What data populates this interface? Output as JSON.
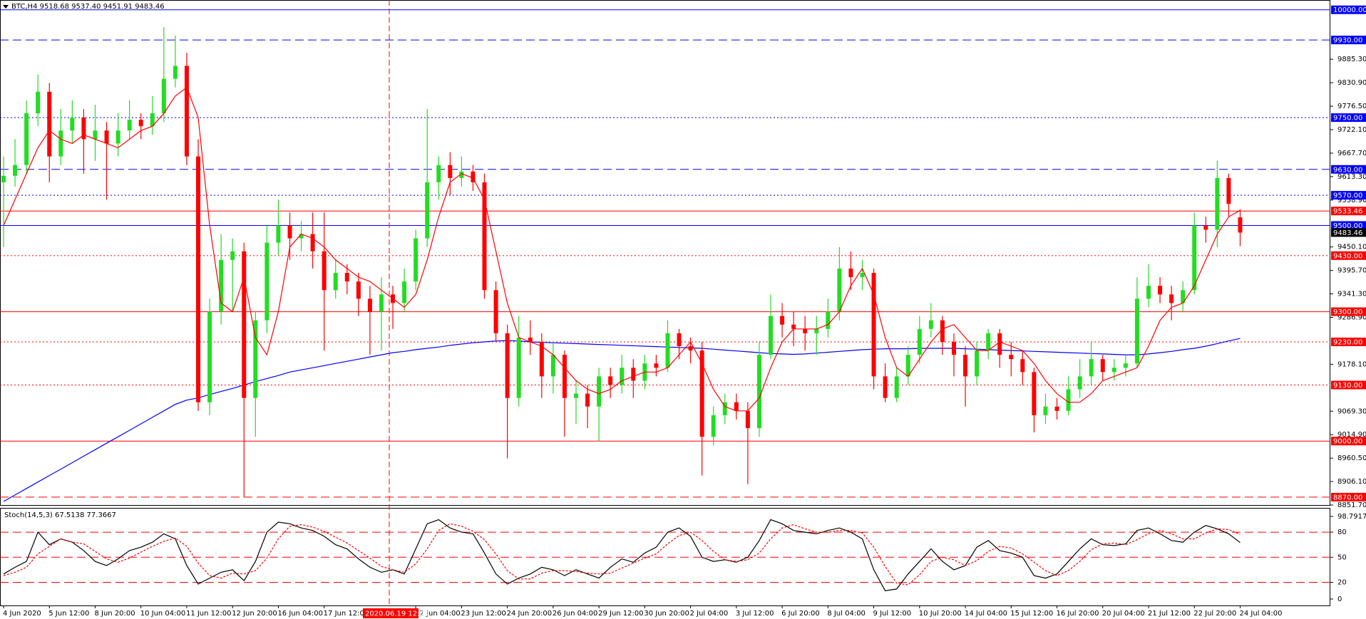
{
  "chart_data": {
    "type": "candlestick",
    "header": "BTC,H4  9518.68 9537.40 9451.91 9483.46",
    "bull_color": "#22dd22",
    "bear_color": "#ff0000",
    "ylim": [
      8851.7,
      10022.7
    ],
    "yticks": [
      {
        "value": 9885.3,
        "label": "9885.30"
      },
      {
        "value": 9830.9,
        "label": "9830.90"
      },
      {
        "value": 9776.5,
        "label": "9776.50"
      },
      {
        "value": 9722.1,
        "label": "9722.10"
      },
      {
        "value": 9667.7,
        "label": "9667.70"
      },
      {
        "value": 9613.3,
        "label": "9613.30"
      },
      {
        "value": 9558.9,
        "label": "9558.90"
      },
      {
        "value": 9450.1,
        "label": "9450.10"
      },
      {
        "value": 9395.7,
        "label": "9395.70"
      },
      {
        "value": 9341.3,
        "label": "9341.30"
      },
      {
        "value": 9286.9,
        "label": "9286.90"
      },
      {
        "value": 9178.1,
        "label": "9178.10"
      },
      {
        "value": 9069.3,
        "label": "9069.30"
      },
      {
        "value": 9014.9,
        "label": "9014.90"
      },
      {
        "value": 8960.5,
        "label": "8960.50"
      },
      {
        "value": 8906.1,
        "label": "8906.10"
      },
      {
        "value": 8851.7,
        "label": "8851.70"
      }
    ],
    "levels": [
      {
        "value": 10000,
        "label": "10000.00",
        "color": "#0000ff",
        "style": "solid"
      },
      {
        "value": 9930,
        "label": "9930.00",
        "color": "#0000ff",
        "style": "dashed"
      },
      {
        "value": 9750,
        "label": "9750.00",
        "color": "#0000ff",
        "style": "dotted"
      },
      {
        "value": 9630,
        "label": "9630.00",
        "color": "#0000ff",
        "style": "dashed"
      },
      {
        "value": 9570,
        "label": "9570.00",
        "color": "#0000ff",
        "style": "dotted"
      },
      {
        "value": 9533.46,
        "color": "#ff0000",
        "style": "solid"
      },
      {
        "value": 9500,
        "label": "9500.00",
        "color": "#0000ff",
        "style": "solid"
      },
      {
        "value": 9430,
        "label": "9430.00",
        "color": "#ff0000",
        "style": "dotted"
      },
      {
        "value": 9300,
        "label": "9300.00",
        "color": "#ff0000",
        "style": "solid"
      },
      {
        "value": 9230,
        "label": "9230.00",
        "color": "#ff0000",
        "style": "dotted"
      },
      {
        "value": 9130,
        "label": "9130.00",
        "color": "#ff0000",
        "style": "dotted"
      },
      {
        "value": 9000,
        "label": "9000.00",
        "color": "#ff0000",
        "style": "solid"
      },
      {
        "value": 8870,
        "label": "8870.00",
        "color": "#ff0000",
        "style": "dashed"
      }
    ],
    "bid": {
      "value": 9483.46,
      "color": "#000000"
    },
    "crosshair": {
      "label": "2020.06.19 12:00",
      "color": "#ff0000"
    },
    "categories": [
      "4 Jun 2020",
      null,
      null,
      null,
      "5 Jun 12:00",
      null,
      null,
      null,
      "8 Jun 20:00",
      null,
      null,
      null,
      "10 Jun 04:00",
      null,
      null,
      null,
      "11 Jun 12:00",
      null,
      null,
      null,
      "12 Jun 20:00",
      null,
      null,
      null,
      "16 Jun 04:00",
      null,
      null,
      null,
      "17 Jun 12:00",
      null,
      null,
      null,
      null,
      null,
      null,
      null,
      "22 Jun 04:00",
      null,
      null,
      null,
      "23 Jun 12:00",
      null,
      null,
      null,
      "24 Jun 20:00",
      null,
      null,
      null,
      "26 Jun 04:00",
      null,
      null,
      null,
      "29 Jun 12:00",
      null,
      null,
      null,
      "30 Jun 20:00",
      null,
      null,
      null,
      "2 Jul 04:00",
      null,
      null,
      null,
      "3 Jul 12:00",
      null,
      null,
      null,
      "6 Jul 20:00",
      null,
      null,
      null,
      "8 Jul 04:00",
      null,
      null,
      null,
      "9 Jul 12:00",
      null,
      null,
      null,
      "10 Jul 20:00",
      null,
      null,
      null,
      "14 Jul 04:00",
      null,
      null,
      null,
      "15 Jul 12:00",
      null,
      null,
      null,
      "16 Jul 20:00",
      null,
      null,
      null,
      "20 Jul 04:00",
      null,
      null,
      null,
      "21 Jul 12:00",
      null,
      null,
      null,
      "22 Jul 20:00",
      null,
      null,
      null,
      "24 Jul 04:00"
    ],
    "ohlc": [
      [
        9600,
        9660,
        9450,
        9615
      ],
      [
        9615,
        9700,
        9590,
        9640
      ],
      [
        9640,
        9790,
        9620,
        9760
      ],
      [
        9760,
        9850,
        9730,
        9810
      ],
      [
        9810,
        9830,
        9600,
        9660
      ],
      [
        9660,
        9770,
        9640,
        9720
      ],
      [
        9720,
        9790,
        9690,
        9750
      ],
      [
        9750,
        9770,
        9620,
        9700
      ],
      [
        9700,
        9780,
        9650,
        9720
      ],
      [
        9720,
        9740,
        9560,
        9690
      ],
      [
        9690,
        9760,
        9660,
        9720
      ],
      [
        9720,
        9790,
        9700,
        9745
      ],
      [
        9745,
        9760,
        9700,
        9730
      ],
      [
        9730,
        9800,
        9710,
        9760
      ],
      [
        9760,
        9960,
        9740,
        9840
      ],
      [
        9840,
        9940,
        9820,
        9870
      ],
      [
        9870,
        9900,
        9640,
        9660
      ],
      [
        9660,
        9700,
        9070,
        9090
      ],
      [
        9090,
        9330,
        9060,
        9300
      ],
      [
        9300,
        9480,
        9270,
        9420
      ],
      [
        9420,
        9470,
        9300,
        9440
      ],
      [
        9440,
        9460,
        8870,
        9100
      ],
      [
        9100,
        9300,
        9010,
        9280
      ],
      [
        9280,
        9500,
        9250,
        9460
      ],
      [
        9460,
        9560,
        9430,
        9500
      ],
      [
        9500,
        9530,
        9420,
        9470
      ],
      [
        9470,
        9510,
        9440,
        9480
      ],
      [
        9480,
        9530,
        9400,
        9440
      ],
      [
        9440,
        9530,
        9210,
        9350
      ],
      [
        9350,
        9420,
        9330,
        9390
      ],
      [
        9390,
        9410,
        9340,
        9370
      ],
      [
        9370,
        9390,
        9290,
        9330
      ],
      [
        9330,
        9360,
        9200,
        9300
      ],
      [
        9300,
        9380,
        9210,
        9340
      ],
      [
        9340,
        9360,
        9260,
        9320
      ],
      [
        9320,
        9400,
        9300,
        9370
      ],
      [
        9370,
        9490,
        9350,
        9470
      ],
      [
        9470,
        9770,
        9450,
        9600
      ],
      [
        9600,
        9660,
        9560,
        9640
      ],
      [
        9640,
        9670,
        9570,
        9610
      ],
      [
        9610,
        9660,
        9590,
        9625
      ],
      [
        9625,
        9640,
        9580,
        9600
      ],
      [
        9600,
        9620,
        9330,
        9350
      ],
      [
        9350,
        9370,
        9230,
        9250
      ],
      [
        9250,
        9270,
        8960,
        9100
      ],
      [
        9100,
        9290,
        9080,
        9240
      ],
      [
        9240,
        9280,
        9200,
        9230
      ],
      [
        9230,
        9250,
        9100,
        9150
      ],
      [
        9150,
        9230,
        9110,
        9200
      ],
      [
        9200,
        9210,
        9010,
        9100
      ],
      [
        9100,
        9140,
        9040,
        9110
      ],
      [
        9110,
        9130,
        9030,
        9080
      ],
      [
        9080,
        9170,
        9000,
        9150
      ],
      [
        9150,
        9170,
        9100,
        9130
      ],
      [
        9130,
        9200,
        9110,
        9170
      ],
      [
        9170,
        9190,
        9100,
        9140
      ],
      [
        9140,
        9200,
        9120,
        9180
      ],
      [
        9180,
        9200,
        9150,
        9170
      ],
      [
        9170,
        9280,
        9160,
        9250
      ],
      [
        9250,
        9260,
        9190,
        9220
      ],
      [
        9220,
        9240,
        9180,
        9210
      ],
      [
        9210,
        9230,
        8920,
        9010
      ],
      [
        9010,
        9080,
        8990,
        9060
      ],
      [
        9060,
        9110,
        9040,
        9090
      ],
      [
        9090,
        9110,
        9050,
        9070
      ],
      [
        9070,
        9090,
        8900,
        9030
      ],
      [
        9030,
        9230,
        9010,
        9200
      ],
      [
        9200,
        9340,
        9190,
        9290
      ],
      [
        9290,
        9320,
        9240,
        9270
      ],
      [
        9270,
        9300,
        9220,
        9260
      ],
      [
        9260,
        9290,
        9210,
        9250
      ],
      [
        9250,
        9290,
        9200,
        9260
      ],
      [
        9260,
        9330,
        9240,
        9300
      ],
      [
        9300,
        9450,
        9280,
        9400
      ],
      [
        9400,
        9440,
        9350,
        9380
      ],
      [
        9380,
        9420,
        9350,
        9390
      ],
      [
        9390,
        9400,
        9120,
        9150
      ],
      [
        9150,
        9180,
        9090,
        9100
      ],
      [
        9100,
        9170,
        9090,
        9150
      ],
      [
        9150,
        9220,
        9130,
        9200
      ],
      [
        9200,
        9290,
        9180,
        9260
      ],
      [
        9260,
        9320,
        9240,
        9280
      ],
      [
        9280,
        9290,
        9200,
        9230
      ],
      [
        9230,
        9250,
        9150,
        9200
      ],
      [
        9200,
        9220,
        9080,
        9150
      ],
      [
        9150,
        9230,
        9130,
        9210
      ],
      [
        9210,
        9260,
        9190,
        9250
      ],
      [
        9250,
        9260,
        9170,
        9200
      ],
      [
        9200,
        9230,
        9150,
        9190
      ],
      [
        9190,
        9210,
        9130,
        9160
      ],
      [
        9160,
        9170,
        9020,
        9060
      ],
      [
        9060,
        9110,
        9040,
        9080
      ],
      [
        9080,
        9100,
        9050,
        9070
      ],
      [
        9070,
        9150,
        9060,
        9120
      ],
      [
        9120,
        9190,
        9100,
        9150
      ],
      [
        9150,
        9230,
        9130,
        9190
      ],
      [
        9190,
        9200,
        9140,
        9160
      ],
      [
        9160,
        9190,
        9140,
        9170
      ],
      [
        9170,
        9200,
        9150,
        9180
      ],
      [
        9180,
        9380,
        9170,
        9330
      ],
      [
        9330,
        9410,
        9310,
        9360
      ],
      [
        9360,
        9380,
        9320,
        9340
      ],
      [
        9340,
        9360,
        9280,
        9320
      ],
      [
        9320,
        9370,
        9300,
        9350
      ],
      [
        9350,
        9530,
        9340,
        9500
      ],
      [
        9500,
        9520,
        9460,
        9490
      ],
      [
        9490,
        9650,
        9450,
        9610
      ],
      [
        9610,
        9620,
        9520,
        9550
      ],
      [
        9518.68,
        9537.4,
        9451.91,
        9483.46
      ]
    ],
    "ma_fast": {
      "color": "#ff0000",
      "values": [
        9500,
        9560,
        9620,
        9680,
        9720,
        9700,
        9690,
        9710,
        9700,
        9690,
        9680,
        9700,
        9720,
        9730,
        9760,
        9800,
        9820,
        9750,
        9500,
        9320,
        9300,
        9380,
        9240,
        9200,
        9300,
        9450,
        9480,
        9470,
        9450,
        9420,
        9400,
        9380,
        9370,
        9350,
        9330,
        9310,
        9340,
        9420,
        9520,
        9600,
        9620,
        9610,
        9560,
        9440,
        9320,
        9240,
        9230,
        9220,
        9200,
        9170,
        9140,
        9120,
        9110,
        9120,
        9140,
        9150,
        9160,
        9160,
        9170,
        9200,
        9230,
        9180,
        9120,
        9080,
        9070,
        9070,
        9100,
        9170,
        9230,
        9260,
        9260,
        9260,
        9270,
        9300,
        9360,
        9400,
        9340,
        9240,
        9170,
        9150,
        9190,
        9230,
        9260,
        9270,
        9240,
        9210,
        9210,
        9230,
        9220,
        9210,
        9180,
        9140,
        9110,
        9090,
        9090,
        9110,
        9140,
        9150,
        9160,
        9170,
        9220,
        9280,
        9310,
        9320,
        9360,
        9420,
        9480,
        9520,
        9535
      ]
    },
    "ma_slow": {
      "color": "#0000ff",
      "values": [
        8860,
        8875,
        8890,
        8905,
        8920,
        8935,
        8950,
        8965,
        8980,
        8995,
        9010,
        9025,
        9040,
        9055,
        9070,
        9085,
        9095,
        9100,
        9108,
        9115,
        9122,
        9130,
        9138,
        9145,
        9152,
        9160,
        9165,
        9170,
        9175,
        9180,
        9185,
        9190,
        9195,
        9200,
        9205,
        9208,
        9212,
        9215,
        9218,
        9222,
        9225,
        9228,
        9230,
        9232,
        9233,
        9232,
        9230,
        9229,
        9228,
        9227,
        9226,
        9225,
        9224,
        9223,
        9222,
        9221,
        9220,
        9219,
        9218,
        9217,
        9216,
        9215,
        9213,
        9211,
        9209,
        9207,
        9205,
        9203,
        9202,
        9201,
        9202,
        9204,
        9206,
        9208,
        9210,
        9212,
        9213,
        9214,
        9214,
        9214,
        9215,
        9215,
        9215,
        9215,
        9214,
        9213,
        9212,
        9211,
        9210,
        9209,
        9208,
        9207,
        9206,
        9205,
        9204,
        9203,
        9202,
        9201,
        9200,
        9200,
        9202,
        9205,
        9208,
        9212,
        9215,
        9220,
        9226,
        9232,
        9238
      ]
    },
    "stoch": {
      "label": "Stoch(14,5,3) 67.5138 77.3667",
      "ylim": [
        0,
        98.7917
      ],
      "yticks": [
        98.7917,
        80,
        50,
        20,
        0
      ],
      "levels": [
        80,
        50,
        20
      ],
      "level_color": "#ff0000",
      "main": {
        "color": "#000000",
        "values": [
          30,
          38,
          45,
          80,
          65,
          72,
          68,
          58,
          45,
          40,
          48,
          58,
          62,
          68,
          78,
          72,
          40,
          18,
          25,
          32,
          35,
          22,
          45,
          80,
          92,
          90,
          85,
          82,
          75,
          65,
          60,
          48,
          38,
          32,
          35,
          30,
          60,
          90,
          95,
          85,
          80,
          78,
          55,
          30,
          18,
          25,
          30,
          38,
          35,
          28,
          35,
          30,
          25,
          38,
          48,
          44,
          55,
          62,
          80,
          85,
          75,
          50,
          45,
          47,
          44,
          50,
          70,
          95,
          90,
          82,
          80,
          78,
          82,
          85,
          80,
          72,
          35,
          10,
          12,
          30,
          45,
          60,
          45,
          35,
          40,
          62,
          70,
          58,
          55,
          50,
          28,
          25,
          30,
          45,
          60,
          72,
          65,
          64,
          66,
          82,
          85,
          78,
          70,
          68,
          80,
          88,
          84,
          78,
          67.5138
        ]
      },
      "signal": {
        "color": "#ff0000",
        "values": [
          28,
          32,
          38,
          54,
          63,
          72,
          68,
          66,
          57,
          48,
          44,
          49,
          56,
          63,
          69,
          73,
          63,
          43,
          28,
          25,
          31,
          30,
          34,
          49,
          72,
          87,
          89,
          86,
          81,
          74,
          67,
          58,
          49,
          39,
          35,
          32,
          42,
          60,
          82,
          90,
          87,
          81,
          71,
          54,
          34,
          24,
          24,
          31,
          34,
          34,
          33,
          31,
          30,
          31,
          37,
          43,
          49,
          54,
          66,
          76,
          80,
          70,
          57,
          47,
          45,
          47,
          55,
          72,
          85,
          89,
          84,
          80,
          80,
          82,
          82,
          79,
          62,
          39,
          19,
          17,
          29,
          45,
          50,
          47,
          40,
          46,
          57,
          63,
          61,
          54,
          44,
          34,
          28,
          34,
          45,
          59,
          66,
          67,
          65,
          71,
          78,
          82,
          78,
          72,
          72,
          79,
          84,
          83,
          77.3667
        ]
      }
    }
  }
}
